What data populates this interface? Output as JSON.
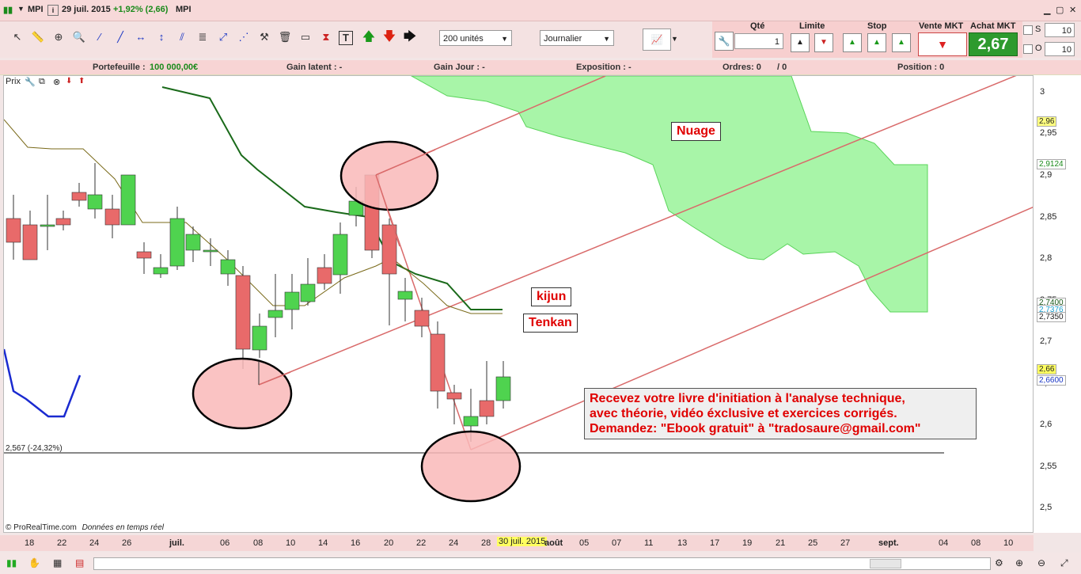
{
  "titlebar": {
    "symbol": "MPI",
    "date": "29 juil. 2015",
    "change": "+1,92% (2,66)",
    "instrument": "MPI"
  },
  "toolbar": {
    "quantity_select": "200 unités",
    "period_select": "Journalier"
  },
  "order_panel": {
    "qty_label": "Qté",
    "qty_value": "1",
    "limit_label": "Limite",
    "stop_label": "Stop",
    "sell_label": "Vente MKT",
    "buy_label": "Achat MKT",
    "buy_price": "2,67",
    "s_label": "S",
    "s_value": "10",
    "o_label": "O",
    "o_value": "10"
  },
  "infobar": {
    "portfolio_label": "Portefeuille :",
    "portfolio_value": "100 000,00€",
    "gain_latent": "Gain latent : -",
    "gain_jour": "Gain Jour : -",
    "exposition": "Exposition : -",
    "ordres": "Ordres: 0",
    "ordres_sep": "/ 0",
    "position": "Position : 0"
  },
  "chart": {
    "panel_label": "Prix",
    "support_label": "2,567 (-24,32%)",
    "credit": "© ProRealTime.com",
    "credit_note": "Données en temps réel",
    "annotations": {
      "nuage": "Nuage",
      "kijun": "kijun",
      "tenkan": "Tenkan"
    },
    "promo": [
      "Recevez votre livre d'initiation à l'analyse technique,",
      "avec théorie, vidéo éxclusive et exercices corrigés.",
      "Demandez:  \"Ebook gratuit\" à  \"tradosaure@gmail.com\""
    ]
  },
  "yaxis": {
    "ticks": [
      "3",
      "2,95",
      "2,9",
      "2,85",
      "2,8",
      "2,75",
      "2,7",
      "2,65",
      "2,6",
      "2,55",
      "2,5"
    ],
    "tags": {
      "t296": "2,96",
      "t29124": "2,9124",
      "t27400": "2,7400",
      "t27376": "2,7376",
      "t27350": "2,7350",
      "t266": "2,66",
      "t26600": "2,6600"
    }
  },
  "xaxis": {
    "labels": [
      "18",
      "22",
      "24",
      "26",
      "juil.",
      "06",
      "08",
      "10",
      "14",
      "16",
      "20",
      "22",
      "24",
      "28",
      "30 juil. 2015",
      "août",
      "05",
      "07",
      "11",
      "13",
      "17",
      "19",
      "21",
      "25",
      "27",
      "sept.",
      "04",
      "08",
      "10"
    ]
  },
  "colors": {
    "bull": "#4fd34f",
    "bear": "#e86a6a",
    "kijun": "#1a6a1a",
    "tenkan": "#7a6a1a",
    "cloud": "#a8f5a8",
    "channel": "#d96a6a",
    "ellipse": "#f9b8b8"
  }
}
